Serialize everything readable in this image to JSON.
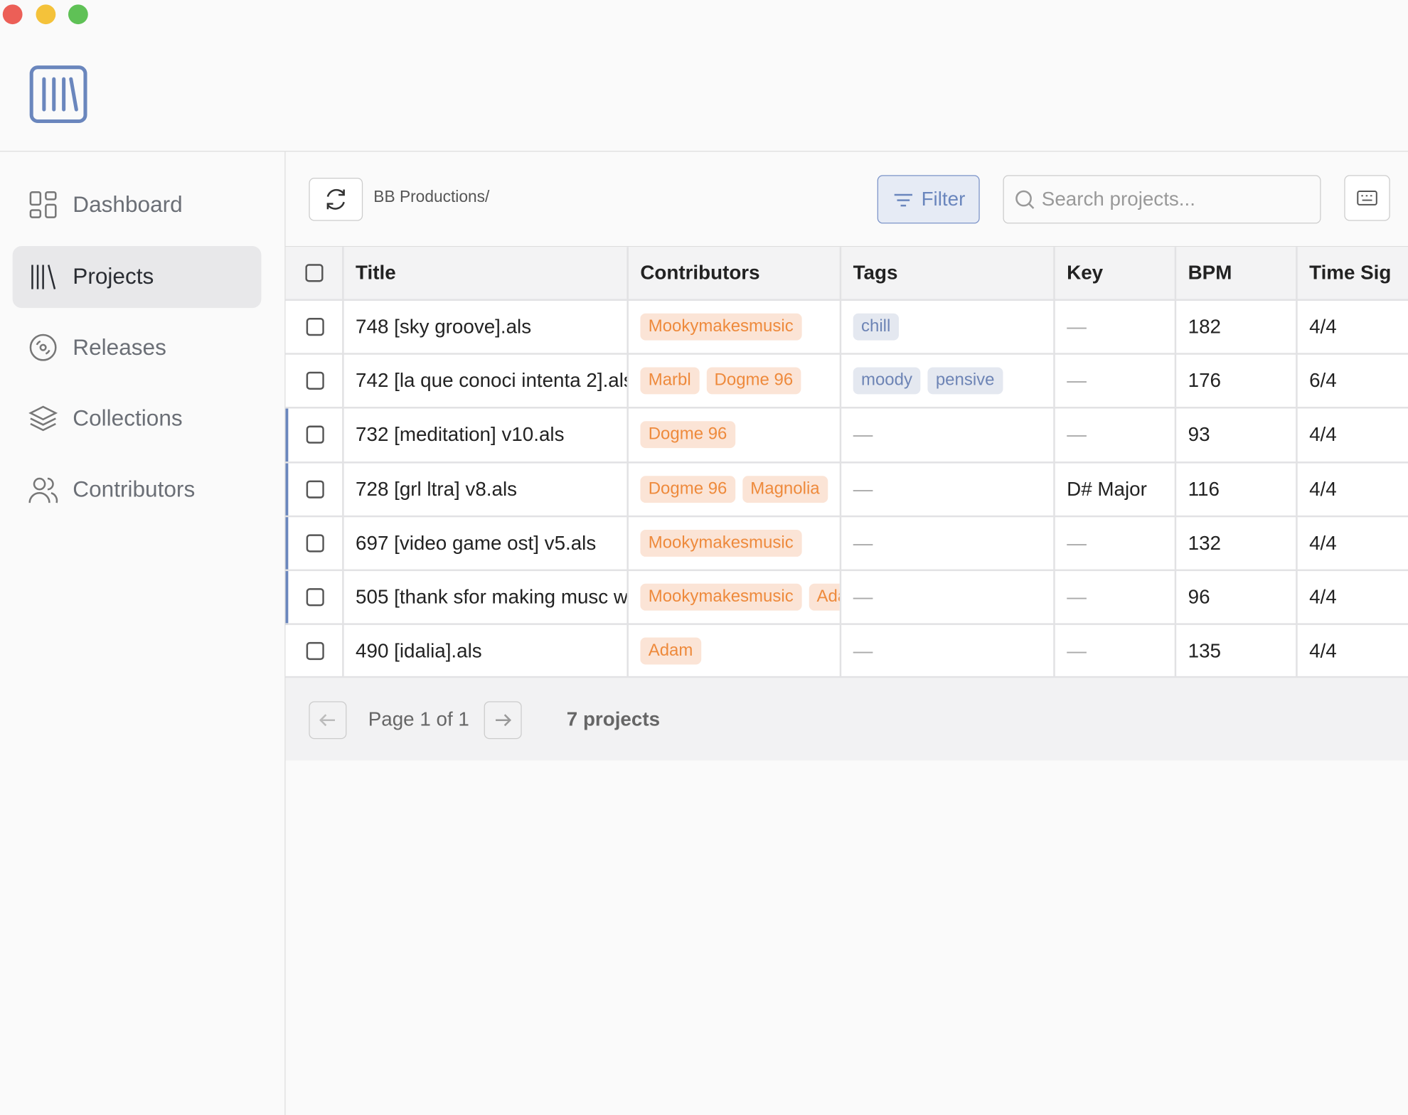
{
  "sidebar": {
    "nav": [
      "Dashboard",
      "Projects",
      "Releases",
      "Collections",
      "Contributors"
    ],
    "active": 1
  },
  "toolbar": {
    "breadcrumb": "BB Productions/",
    "filter": "Filter",
    "search_placeholder": "Search projects..."
  },
  "table": {
    "columns": [
      "Title",
      "Contributors",
      "Tags",
      "Key",
      "BPM",
      "Time Sig"
    ],
    "rows": [
      {
        "title": "748 [sky groove].als",
        "contributors": [
          "Mookymakesmusic"
        ],
        "tags": [
          "chill"
        ],
        "key": "—",
        "bpm": 182,
        "time_sig": "4/4"
      },
      {
        "title": "742 [la que conoci intenta 2].als",
        "contributors": [
          "Marbl",
          "Dogme 96"
        ],
        "tags": [
          "moody",
          "pensive"
        ],
        "key": "—",
        "bpm": 176,
        "time_sig": "6/4"
      },
      {
        "title": "732 [meditation] v10.als",
        "contributors": [
          "Dogme 96"
        ],
        "tags": "—",
        "key": "—",
        "bpm": 93,
        "time_sig": "4/4"
      },
      {
        "title": "728 [grl ltra] v8.als",
        "contributors": [
          "Dogme 96",
          "Magnolia"
        ],
        "tags": "—",
        "key": "D# Major",
        "bpm": 116,
        "time_sig": "4/4"
      },
      {
        "title": "697 [video game ost] v5.als",
        "contributors": [
          "Mookymakesmusic"
        ],
        "tags": "—",
        "key": "—",
        "bpm": 132,
        "time_sig": "4/4"
      },
      {
        "title": "505 [thank sfor making musc w",
        "contributors": [
          "Mookymakesmusic",
          "Adam"
        ],
        "tags": "—",
        "key": "—",
        "bpm": 96,
        "time_sig": "4/4"
      },
      {
        "title": "490 [idalia].als",
        "contributors": [
          "Adam"
        ],
        "tags": "—",
        "key": "—",
        "bpm": 135,
        "time_sig": "4/4"
      }
    ]
  },
  "pagination": {
    "page": "Page 1 of 1",
    "count": "7 projects"
  }
}
